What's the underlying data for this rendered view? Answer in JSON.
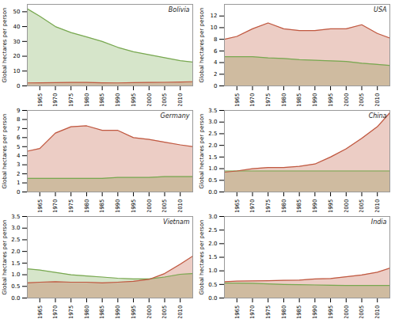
{
  "chart_data": [
    {
      "type": "area",
      "title": "Bolivia",
      "ylabel": "Global hectares per person",
      "x": [
        1961,
        1965,
        1970,
        1975,
        1980,
        1985,
        1990,
        1995,
        2000,
        2005,
        2010,
        2014
      ],
      "xlim": [
        1961,
        2014
      ],
      "xticks": [
        1965,
        1970,
        1975,
        1980,
        1985,
        1990,
        1995,
        2000,
        2005,
        2010
      ],
      "ylim": [
        0,
        55
      ],
      "yticks": [
        0,
        10,
        20,
        30,
        40,
        50
      ],
      "grid": false,
      "series": [
        {
          "color": "#78a850",
          "values": [
            52,
            47,
            40,
            36,
            33,
            30,
            26,
            23,
            21,
            19,
            17,
            16
          ]
        },
        {
          "color": "#c05840",
          "values": [
            2.0,
            2.1,
            2.2,
            2.3,
            2.3,
            2.1,
            2.0,
            2.2,
            2.3,
            2.4,
            2.6,
            2.8
          ]
        }
      ]
    },
    {
      "type": "area",
      "title": "USA",
      "ylabel": "Global hectares per person",
      "x": [
        1961,
        1965,
        1970,
        1975,
        1980,
        1985,
        1990,
        1995,
        2000,
        2005,
        2010,
        2014
      ],
      "xlim": [
        1961,
        2014
      ],
      "xticks": [
        1965,
        1970,
        1975,
        1980,
        1985,
        1990,
        1995,
        2000,
        2005,
        2010
      ],
      "ylim": [
        0,
        14
      ],
      "yticks": [
        0,
        2,
        4,
        6,
        8,
        10,
        12
      ],
      "grid": false,
      "series": [
        {
          "color": "#78a850",
          "values": [
            5.0,
            5.0,
            5.0,
            4.8,
            4.7,
            4.5,
            4.4,
            4.3,
            4.2,
            3.9,
            3.7,
            3.5
          ]
        },
        {
          "color": "#c05840",
          "values": [
            8.0,
            8.5,
            9.8,
            10.8,
            9.8,
            9.5,
            9.5,
            9.8,
            9.8,
            10.5,
            9.0,
            8.2
          ]
        }
      ]
    },
    {
      "type": "area",
      "title": "Germany",
      "ylabel": "Global hectares per person",
      "x": [
        1961,
        1965,
        1970,
        1975,
        1980,
        1985,
        1990,
        1995,
        2000,
        2005,
        2010,
        2014
      ],
      "xlim": [
        1961,
        2014
      ],
      "xticks": [
        1965,
        1970,
        1975,
        1980,
        1985,
        1990,
        1995,
        2000,
        2005,
        2010
      ],
      "ylim": [
        0,
        9
      ],
      "yticks": [
        0,
        1,
        2,
        3,
        4,
        5,
        6,
        7,
        8,
        9
      ],
      "grid": false,
      "series": [
        {
          "color": "#78a850",
          "values": [
            1.5,
            1.5,
            1.5,
            1.5,
            1.5,
            1.5,
            1.6,
            1.6,
            1.6,
            1.7,
            1.7,
            1.7
          ]
        },
        {
          "color": "#c05840",
          "values": [
            4.5,
            4.8,
            6.5,
            7.2,
            7.3,
            6.8,
            6.8,
            6.0,
            5.8,
            5.5,
            5.2,
            5.0
          ]
        }
      ]
    },
    {
      "type": "area",
      "title": "China",
      "ylabel": "Global hectares per person",
      "x": [
        1961,
        1965,
        1970,
        1975,
        1980,
        1985,
        1990,
        1995,
        2000,
        2005,
        2010,
        2014
      ],
      "xlim": [
        1961,
        2014
      ],
      "xticks": [
        1965,
        1970,
        1975,
        1980,
        1985,
        1990,
        1995,
        2000,
        2005,
        2010
      ],
      "ylim": [
        0,
        3.5
      ],
      "yticks": [
        {
          "value": 0,
          "label": "0.0"
        },
        0.5,
        {
          "value": 1,
          "label": "1.0"
        },
        1.5,
        {
          "value": 2,
          "label": "2.0"
        },
        2.5,
        {
          "value": 3,
          "label": "3.0"
        },
        3.5
      ],
      "grid": false,
      "series": [
        {
          "color": "#78a850",
          "values": [
            0.9,
            0.9,
            0.9,
            0.9,
            0.9,
            0.9,
            0.9,
            0.9,
            0.9,
            0.9,
            0.9,
            0.9
          ]
        },
        {
          "color": "#c05840",
          "values": [
            0.85,
            0.9,
            1.0,
            1.05,
            1.05,
            1.1,
            1.2,
            1.5,
            1.85,
            2.3,
            2.8,
            3.4
          ]
        }
      ]
    },
    {
      "type": "area",
      "title": "Vietnam",
      "ylabel": "Global hectares per person",
      "x": [
        1961,
        1965,
        1970,
        1975,
        1980,
        1985,
        1990,
        1995,
        2000,
        2005,
        2010,
        2014
      ],
      "xlim": [
        1961,
        2014
      ],
      "xticks": [
        1965,
        1970,
        1975,
        1980,
        1985,
        1990,
        1995,
        2000,
        2005,
        2010
      ],
      "ylim": [
        0,
        3.5
      ],
      "yticks": [
        {
          "value": 0,
          "label": "0.0"
        },
        0.5,
        {
          "value": 1,
          "label": "1.0"
        },
        1.5,
        {
          "value": 2,
          "label": "2.0"
        },
        2.5,
        {
          "value": 3,
          "label": "3.0"
        },
        3.5
      ],
      "grid": false,
      "series": [
        {
          "color": "#78a850",
          "values": [
            1.25,
            1.2,
            1.1,
            1.0,
            0.95,
            0.9,
            0.85,
            0.82,
            0.82,
            0.9,
            1.02,
            1.05
          ]
        },
        {
          "color": "#c05840",
          "values": [
            0.65,
            0.68,
            0.7,
            0.68,
            0.68,
            0.65,
            0.68,
            0.72,
            0.8,
            1.05,
            1.45,
            1.8
          ]
        }
      ]
    },
    {
      "type": "area",
      "title": "India",
      "ylabel": "Global hectares per person",
      "x": [
        1961,
        1965,
        1970,
        1975,
        1980,
        1985,
        1990,
        1995,
        2000,
        2005,
        2010,
        2014
      ],
      "xlim": [
        1961,
        2014
      ],
      "xticks": [
        1965,
        1970,
        1975,
        1980,
        1985,
        1990,
        1995,
        2000,
        2005,
        2010
      ],
      "ylim": [
        0,
        3.0
      ],
      "yticks": [
        {
          "value": 0,
          "label": "0.0"
        },
        0.5,
        {
          "value": 1,
          "label": "1.0"
        },
        1.5,
        {
          "value": 2,
          "label": "2.0"
        },
        2.5,
        {
          "value": 3,
          "label": "3.0"
        }
      ],
      "grid": false,
      "series": [
        {
          "color": "#78a850",
          "values": [
            0.55,
            0.55,
            0.54,
            0.52,
            0.5,
            0.49,
            0.48,
            0.47,
            0.46,
            0.46,
            0.46,
            0.46
          ]
        },
        {
          "color": "#c05840",
          "values": [
            0.6,
            0.62,
            0.63,
            0.64,
            0.65,
            0.66,
            0.7,
            0.72,
            0.78,
            0.85,
            0.95,
            1.1
          ]
        }
      ]
    }
  ]
}
